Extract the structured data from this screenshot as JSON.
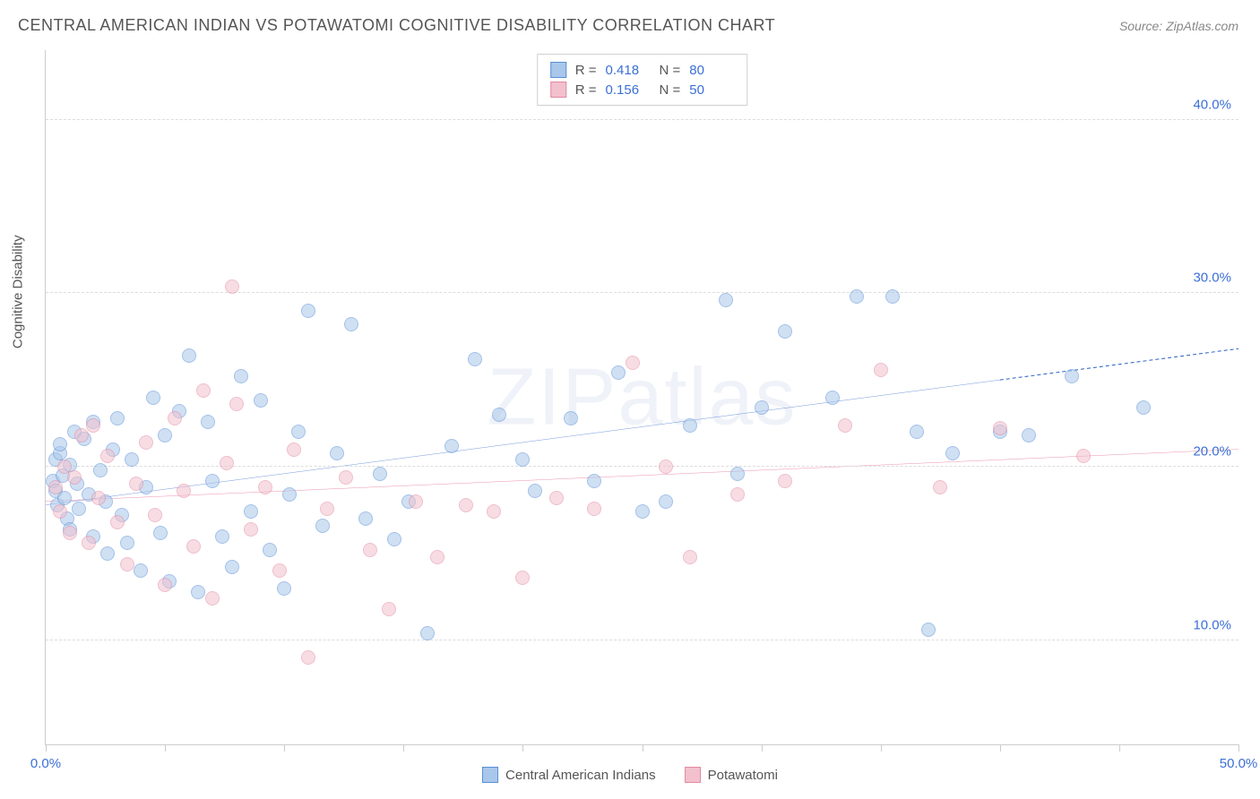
{
  "title": "CENTRAL AMERICAN INDIAN VS POTAWATOMI COGNITIVE DISABILITY CORRELATION CHART",
  "source_label": "Source: ZipAtlas.com",
  "watermark": "ZIPatlas",
  "ylabel": "Cognitive Disability",
  "chart": {
    "type": "scatter",
    "xlim": [
      0,
      50
    ],
    "ylim": [
      4,
      44
    ],
    "y_ticks": [
      10,
      20,
      30,
      40
    ],
    "y_tick_labels": [
      "10.0%",
      "20.0%",
      "30.0%",
      "40.0%"
    ],
    "x_ticks": [
      0,
      5,
      10,
      15,
      20,
      25,
      30,
      35,
      40,
      45,
      50
    ],
    "x_tick_labels": {
      "0": "0.0%",
      "50": "50.0%"
    },
    "grid_color": "#dcdcdc",
    "axis_color": "#cccccc",
    "background_color": "#ffffff",
    "tick_label_color": "#3b6fd6",
    "marker_radius": 8,
    "marker_opacity": 0.55,
    "marker_stroke_width": 1.2,
    "trend_line_width": 2.5
  },
  "series": [
    {
      "id": "cai",
      "name": "Central American Indians",
      "fill": "#a9c7ea",
      "stroke": "#5a8fd6",
      "line_color": "#2a5fc7",
      "r_value": "0.418",
      "n_value": "80",
      "trend": {
        "x1": 0,
        "y1": 17.8,
        "x2": 40,
        "y2": 25.0,
        "dash_after_x": 40,
        "x3": 50,
        "y3": 26.8
      },
      "points": [
        [
          0.3,
          19.2
        ],
        [
          0.4,
          20.4
        ],
        [
          0.4,
          18.6
        ],
        [
          0.5,
          17.8
        ],
        [
          0.6,
          20.8
        ],
        [
          0.6,
          21.3
        ],
        [
          0.7,
          19.5
        ],
        [
          0.8,
          18.2
        ],
        [
          0.9,
          17.0
        ],
        [
          1.0,
          20.1
        ],
        [
          1.0,
          16.4
        ],
        [
          1.2,
          22.0
        ],
        [
          1.3,
          19.0
        ],
        [
          1.4,
          17.6
        ],
        [
          1.6,
          21.6
        ],
        [
          1.8,
          18.4
        ],
        [
          2.0,
          16.0
        ],
        [
          2.0,
          22.6
        ],
        [
          2.3,
          19.8
        ],
        [
          2.5,
          18.0
        ],
        [
          2.6,
          15.0
        ],
        [
          2.8,
          21.0
        ],
        [
          3.0,
          22.8
        ],
        [
          3.2,
          17.2
        ],
        [
          3.4,
          15.6
        ],
        [
          3.6,
          20.4
        ],
        [
          4.0,
          14.0
        ],
        [
          4.2,
          18.8
        ],
        [
          4.5,
          24.0
        ],
        [
          4.8,
          16.2
        ],
        [
          5.0,
          21.8
        ],
        [
          5.2,
          13.4
        ],
        [
          5.6,
          23.2
        ],
        [
          6.0,
          26.4
        ],
        [
          6.4,
          12.8
        ],
        [
          6.8,
          22.6
        ],
        [
          7.0,
          19.2
        ],
        [
          7.4,
          16.0
        ],
        [
          7.8,
          14.2
        ],
        [
          8.2,
          25.2
        ],
        [
          8.6,
          17.4
        ],
        [
          9.0,
          23.8
        ],
        [
          9.4,
          15.2
        ],
        [
          10.0,
          13.0
        ],
        [
          10.2,
          18.4
        ],
        [
          10.6,
          22.0
        ],
        [
          11.0,
          29.0
        ],
        [
          11.6,
          16.6
        ],
        [
          12.2,
          20.8
        ],
        [
          12.8,
          28.2
        ],
        [
          13.4,
          17.0
        ],
        [
          14.0,
          19.6
        ],
        [
          14.6,
          15.8
        ],
        [
          15.2,
          18.0
        ],
        [
          16.0,
          10.4
        ],
        [
          17.0,
          21.2
        ],
        [
          18.0,
          26.2
        ],
        [
          19.0,
          23.0
        ],
        [
          20.0,
          20.4
        ],
        [
          20.5,
          18.6
        ],
        [
          22.0,
          22.8
        ],
        [
          23.0,
          19.2
        ],
        [
          24.0,
          25.4
        ],
        [
          25.0,
          17.4
        ],
        [
          26.0,
          18.0
        ],
        [
          27.0,
          22.4
        ],
        [
          28.5,
          29.6
        ],
        [
          29.0,
          19.6
        ],
        [
          30.0,
          23.4
        ],
        [
          31.0,
          27.8
        ],
        [
          33.0,
          24.0
        ],
        [
          34.0,
          29.8
        ],
        [
          35.5,
          29.8
        ],
        [
          36.5,
          22.0
        ],
        [
          37.0,
          10.6
        ],
        [
          38.0,
          20.8
        ],
        [
          40.0,
          22.0
        ],
        [
          41.2,
          21.8
        ],
        [
          43.0,
          25.2
        ],
        [
          46.0,
          23.4
        ]
      ]
    },
    {
      "id": "pot",
      "name": "Potawatomi",
      "fill": "#f2c1cd",
      "stroke": "#e28aa2",
      "line_color": "#e2557e",
      "r_value": "0.156",
      "n_value": "50",
      "trend": {
        "x1": 0,
        "y1": 18.0,
        "x2": 50,
        "y2": 21.0
      },
      "points": [
        [
          0.4,
          18.8
        ],
        [
          0.6,
          17.4
        ],
        [
          0.8,
          20.0
        ],
        [
          1.0,
          16.2
        ],
        [
          1.2,
          19.4
        ],
        [
          1.5,
          21.8
        ],
        [
          1.8,
          15.6
        ],
        [
          2.0,
          22.4
        ],
        [
          2.2,
          18.2
        ],
        [
          2.6,
          20.6
        ],
        [
          3.0,
          16.8
        ],
        [
          3.4,
          14.4
        ],
        [
          3.8,
          19.0
        ],
        [
          4.2,
          21.4
        ],
        [
          4.6,
          17.2
        ],
        [
          5.0,
          13.2
        ],
        [
          5.4,
          22.8
        ],
        [
          5.8,
          18.6
        ],
        [
          6.2,
          15.4
        ],
        [
          6.6,
          24.4
        ],
        [
          7.0,
          12.4
        ],
        [
          7.6,
          20.2
        ],
        [
          8.0,
          23.6
        ],
        [
          8.6,
          16.4
        ],
        [
          9.2,
          18.8
        ],
        [
          9.8,
          14.0
        ],
        [
          10.4,
          21.0
        ],
        [
          11.0,
          9.0
        ],
        [
          11.8,
          17.6
        ],
        [
          12.6,
          19.4
        ],
        [
          13.6,
          15.2
        ],
        [
          14.4,
          11.8
        ],
        [
          15.5,
          18.0
        ],
        [
          16.4,
          14.8
        ],
        [
          17.6,
          17.8
        ],
        [
          18.8,
          17.4
        ],
        [
          20.0,
          13.6
        ],
        [
          21.4,
          18.2
        ],
        [
          23.0,
          17.6
        ],
        [
          24.6,
          26.0
        ],
        [
          26.0,
          20.0
        ],
        [
          27.0,
          14.8
        ],
        [
          29.0,
          18.4
        ],
        [
          31.0,
          19.2
        ],
        [
          33.5,
          22.4
        ],
        [
          35.0,
          25.6
        ],
        [
          37.5,
          18.8
        ],
        [
          40.0,
          22.2
        ],
        [
          43.5,
          20.6
        ],
        [
          7.8,
          30.4
        ]
      ]
    }
  ],
  "stats_legend_labels": {
    "r": "R =",
    "n": "N ="
  }
}
